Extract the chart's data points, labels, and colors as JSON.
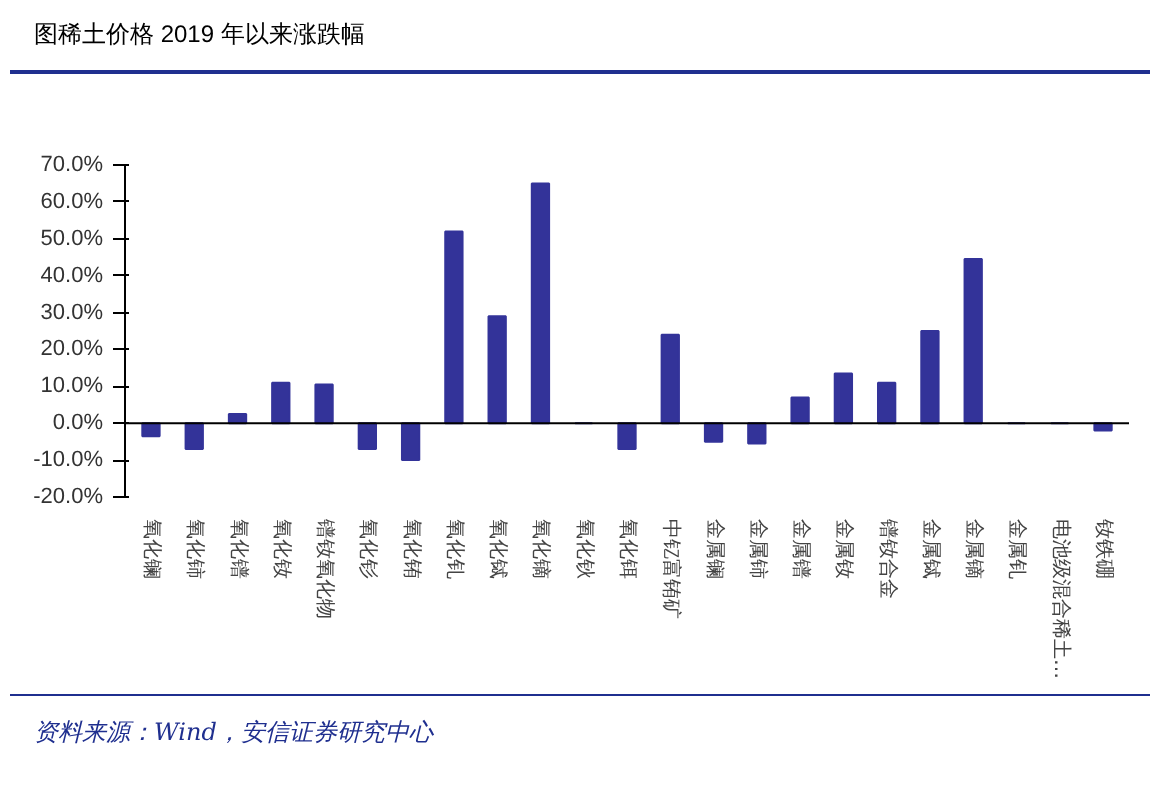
{
  "chart_data": {
    "type": "bar",
    "title": "稀土价格 2019 年以来涨跌幅",
    "categories": [
      "氧化镧",
      "氧化铈",
      "氧化镨",
      "氧化钕",
      "镨钕氧化物",
      "氧化钐",
      "氧化铕",
      "氧化钆",
      "氧化铽",
      "氧化镝",
      "氧化钬",
      "氧化铒",
      "中钇富铕矿",
      "金属镧",
      "金属铈",
      "金属镨",
      "金属钕",
      "镨钕合金",
      "金属铽",
      "金属镝",
      "金属钆",
      "电池级混合稀土…",
      "钕铁硼"
    ],
    "values": [
      -3.5,
      -7,
      2.5,
      11,
      10.5,
      -7,
      -10,
      52,
      29,
      65,
      0,
      -7,
      24,
      -5,
      -5.5,
      7,
      13.5,
      11,
      25,
      44.5,
      0,
      0,
      -2
    ],
    "color": "#333399",
    "ylim": [
      -20,
      70
    ],
    "yticks": [
      {
        "value": -20,
        "label": "-20.0%"
      },
      {
        "value": -10,
        "label": "-10.0%"
      },
      {
        "value": 0,
        "label": "0.0%"
      },
      {
        "value": 10,
        "label": "10.0%"
      },
      {
        "value": 20,
        "label": "20.0%"
      },
      {
        "value": 30,
        "label": "30.0%"
      },
      {
        "value": 40,
        "label": "40.0%"
      },
      {
        "value": 50,
        "label": "50.0%"
      },
      {
        "value": 60,
        "label": "60.0%"
      },
      {
        "value": 70,
        "label": "70.0%"
      }
    ],
    "annotations": [
      "图",
      "资料来源：Wind，安信证券研究中心"
    ]
  }
}
